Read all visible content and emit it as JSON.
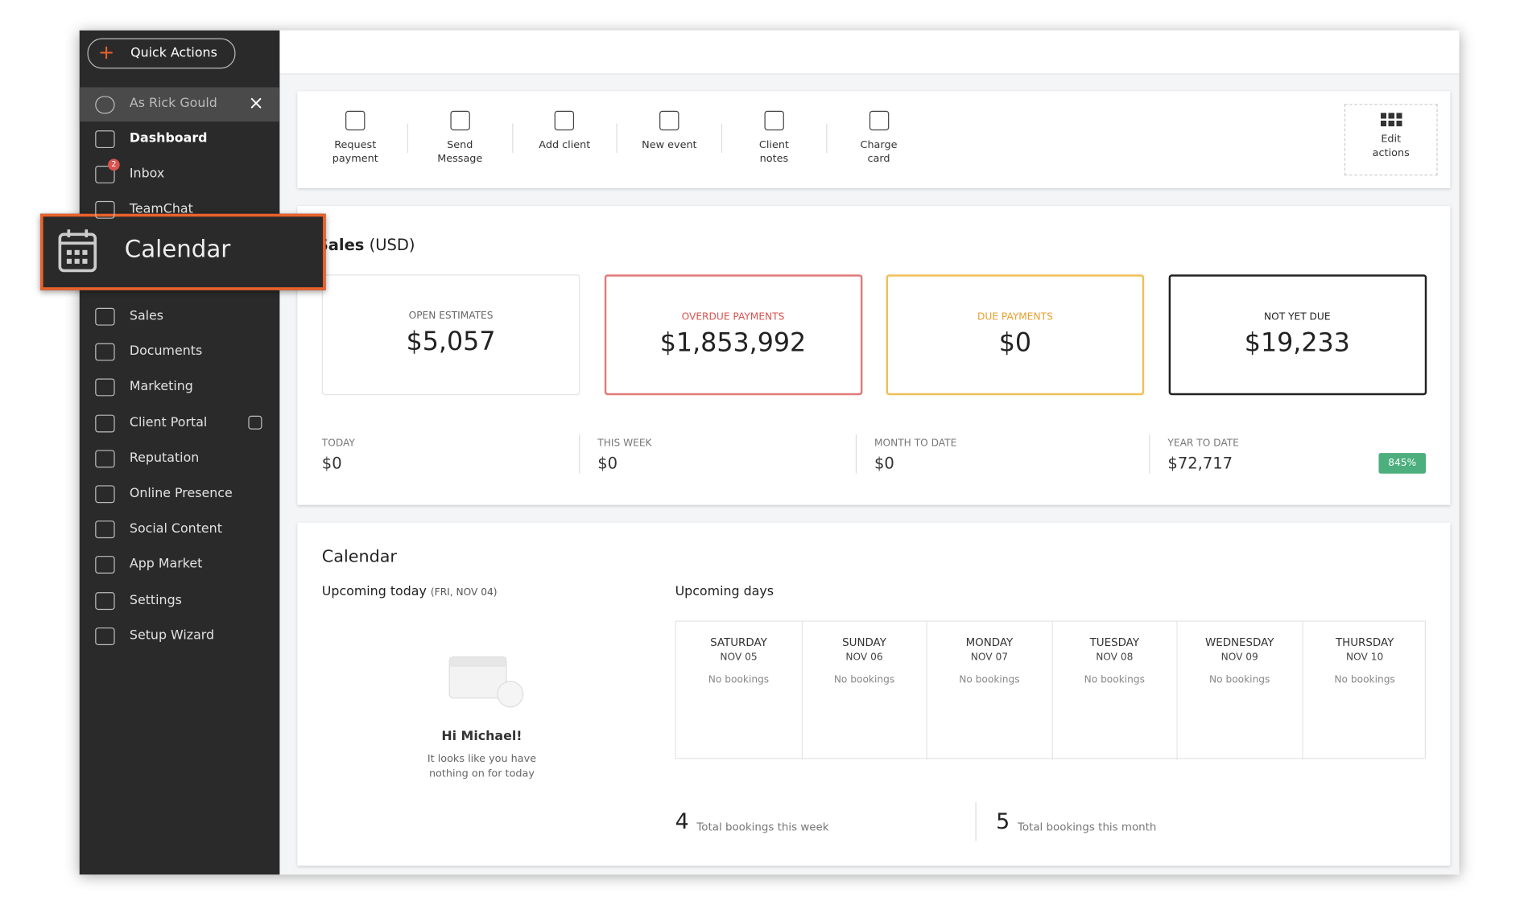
{
  "quick_actions": "Quick Actions",
  "sidebar": {
    "user": "As Rick Gould",
    "close": "×",
    "items": [
      {
        "label": "Dashboard"
      },
      {
        "label": "Inbox",
        "badge": "2"
      },
      {
        "label": "TeamChat"
      },
      {
        "label": "Sales"
      },
      {
        "label": "Documents"
      },
      {
        "label": "Marketing"
      },
      {
        "label": "Client Portal"
      },
      {
        "label": "Reputation"
      },
      {
        "label": "Online Presence"
      },
      {
        "label": "Social Content"
      },
      {
        "label": "App Market"
      },
      {
        "label": "Settings"
      },
      {
        "label": "Setup Wizard"
      }
    ]
  },
  "callout": "Calendar",
  "actions": [
    "Request payment",
    "Send Message",
    "Add client",
    "New event",
    "Client notes",
    "Charge card"
  ],
  "edit_actions": "Edit actions",
  "sales": {
    "title": "Sales",
    "unit": "(USD)",
    "cards": [
      {
        "label": "OPEN ESTIMATES",
        "value": "$5,057"
      },
      {
        "label": "OVERDUE PAYMENTS",
        "value": "$1,853,992"
      },
      {
        "label": "DUE PAYMENTS",
        "value": "$0"
      },
      {
        "label": "NOT YET DUE",
        "value": "$19,233"
      }
    ],
    "stats": [
      {
        "label": "TODAY",
        "value": "$0"
      },
      {
        "label": "THIS WEEK",
        "value": "$0"
      },
      {
        "label": "MONTH TO DATE",
        "value": "$0"
      },
      {
        "label": "YEAR TO DATE",
        "value": "$72,717"
      }
    ],
    "badge": "845%"
  },
  "calendar": {
    "title": "Calendar",
    "today_title": "Upcoming today",
    "today_date": "(FRI, NOV 04)",
    "greeting": "Hi Michael!",
    "message": "It looks like you have nothing on for today",
    "days_title": "Upcoming days",
    "days": [
      {
        "name": "SATURDAY",
        "date": "NOV 05",
        "status": "No bookings"
      },
      {
        "name": "SUNDAY",
        "date": "NOV 06",
        "status": "No bookings"
      },
      {
        "name": "MONDAY",
        "date": "NOV 07",
        "status": "No bookings"
      },
      {
        "name": "TUESDAY",
        "date": "NOV 08",
        "status": "No bookings"
      },
      {
        "name": "WEDNESDAY",
        "date": "NOV 09",
        "status": "No bookings"
      },
      {
        "name": "THURSDAY",
        "date": "NOV 10",
        "status": "No bookings"
      }
    ],
    "totals": [
      {
        "count": "4",
        "label": "Total bookings this week"
      },
      {
        "count": "5",
        "label": "Total bookings this month"
      }
    ]
  }
}
